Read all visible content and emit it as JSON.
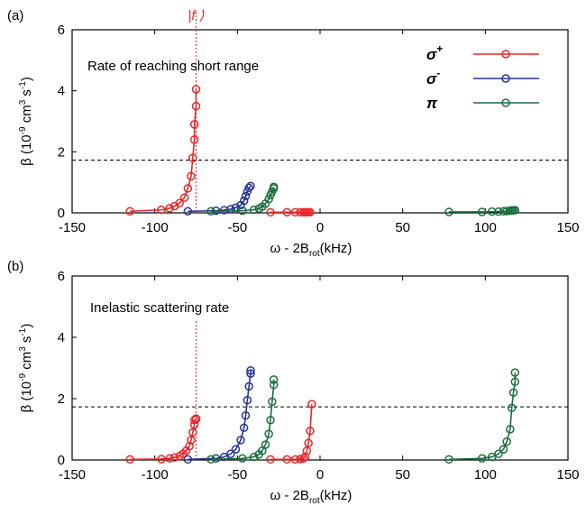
{
  "chart_data": [
    {
      "type": "scatter",
      "panel_label": "(a)",
      "annotation": "Rate of reaching short range",
      "state_label": "|f ⟩",
      "state_marker_x": -75,
      "hline_y": 1.73,
      "xlabel": "ω - 2B",
      "xlabel_sub": "rot",
      "xlabel_unit": "(kHz)",
      "ylabel": "β (10",
      "ylabel_exp": "-9",
      "ylabel_unit": " cm",
      "ylabel_unit_exp": "3",
      "ylabel_unit2": " s",
      "ylabel_unit2_exp": "-1",
      "ylabel_close": ")",
      "xlim": [
        -150,
        150
      ],
      "ylim": [
        0,
        6
      ],
      "xticks": [
        "-150",
        "-100",
        "-50",
        "0",
        "50",
        "100",
        "150"
      ],
      "yticks": [
        "0",
        "2",
        "4",
        "6"
      ],
      "legend_position": "top-right",
      "series": [
        {
          "name": "σ",
          "name_sup": "+",
          "color": "#e8262b",
          "x": [
            -115,
            -96,
            -91,
            -88,
            -85,
            -82,
            -80,
            -78,
            -77,
            -76,
            -76,
            -75,
            -75,
            -30,
            -20,
            -15,
            -12,
            -10,
            -9,
            -8,
            -7,
            -6
          ],
          "y": [
            0.05,
            0.1,
            0.15,
            0.22,
            0.32,
            0.5,
            0.8,
            1.2,
            1.8,
            2.4,
            2.9,
            3.5,
            4.05,
            0.02,
            0.02,
            0.02,
            0.02,
            0.02,
            0.02,
            0.02,
            0.02,
            0.02
          ]
        },
        {
          "name": "σ",
          "name_sup": "-",
          "color": "#283593",
          "x": [
            -80,
            -63,
            -58,
            -54,
            -51,
            -48,
            -46,
            -45,
            -44,
            -43,
            -42
          ],
          "y": [
            0.05,
            0.07,
            0.09,
            0.12,
            0.17,
            0.25,
            0.4,
            0.55,
            0.7,
            0.82,
            0.88
          ]
        },
        {
          "name": "π",
          "name_sup": "",
          "color": "#1b6e3c",
          "x": [
            -66,
            -47,
            -40,
            -37,
            -35,
            -33,
            -31,
            -30,
            -29,
            -28,
            -28,
            78,
            98,
            104,
            108,
            111,
            113,
            115,
            116,
            117,
            118
          ],
          "y": [
            0.05,
            0.07,
            0.1,
            0.14,
            0.2,
            0.3,
            0.45,
            0.58,
            0.7,
            0.8,
            0.85,
            0.03,
            0.03,
            0.04,
            0.04,
            0.05,
            0.06,
            0.07,
            0.08,
            0.08,
            0.09
          ]
        }
      ]
    },
    {
      "type": "scatter",
      "panel_label": "(b)",
      "annotation": "Inelastic scattering rate",
      "state_marker_x": -75,
      "hline_y": 1.73,
      "xlabel": "ω - 2B",
      "xlabel_sub": "rot",
      "xlabel_unit": "(kHz)",
      "ylabel": "β (10",
      "ylabel_exp": "-9",
      "ylabel_unit": " cm",
      "ylabel_unit_exp": "3",
      "ylabel_unit2": " s",
      "ylabel_unit2_exp": "-1",
      "ylabel_close": ")",
      "xlim": [
        -150,
        150
      ],
      "ylim": [
        0,
        6
      ],
      "xticks": [
        "-150",
        "-100",
        "-50",
        "0",
        "50",
        "100",
        "150"
      ],
      "yticks": [
        "0",
        "2",
        "4",
        "6"
      ],
      "series": [
        {
          "name": "σ+",
          "color": "#e8262b",
          "x": [
            -115,
            -96,
            -91,
            -88,
            -85,
            -83,
            -81,
            -79,
            -78,
            -77,
            -76,
            -76,
            -75,
            -75,
            -30,
            -20,
            -15,
            -12,
            -10,
            -9,
            -8,
            -7,
            -6,
            -5
          ],
          "y": [
            0.02,
            0.03,
            0.05,
            0.08,
            0.13,
            0.2,
            0.3,
            0.45,
            0.65,
            0.9,
            1.15,
            1.3,
            1.33,
            1.35,
            0.02,
            0.02,
            0.02,
            0.03,
            0.05,
            0.1,
            0.3,
            0.55,
            0.95,
            1.82
          ]
        },
        {
          "name": "σ-",
          "color": "#283593",
          "x": [
            -80,
            -63,
            -58,
            -54,
            -51,
            -48,
            -46,
            -45,
            -44,
            -43,
            -42,
            -42
          ],
          "y": [
            0.02,
            0.05,
            0.1,
            0.2,
            0.35,
            0.65,
            1.05,
            1.45,
            1.95,
            2.4,
            2.82,
            2.92
          ]
        },
        {
          "name": "π",
          "color": "#1b6e3c",
          "x": [
            -66,
            -47,
            -40,
            -37,
            -35,
            -33,
            -31,
            -30,
            -29,
            -28,
            -28,
            78,
            98,
            104,
            108,
            111,
            113,
            115,
            116,
            117,
            118,
            118
          ],
          "y": [
            0.02,
            0.05,
            0.1,
            0.18,
            0.3,
            0.5,
            0.85,
            1.3,
            1.9,
            2.45,
            2.62,
            0.02,
            0.05,
            0.1,
            0.2,
            0.35,
            0.6,
            1.0,
            1.7,
            2.2,
            2.55,
            2.85
          ]
        }
      ]
    }
  ]
}
